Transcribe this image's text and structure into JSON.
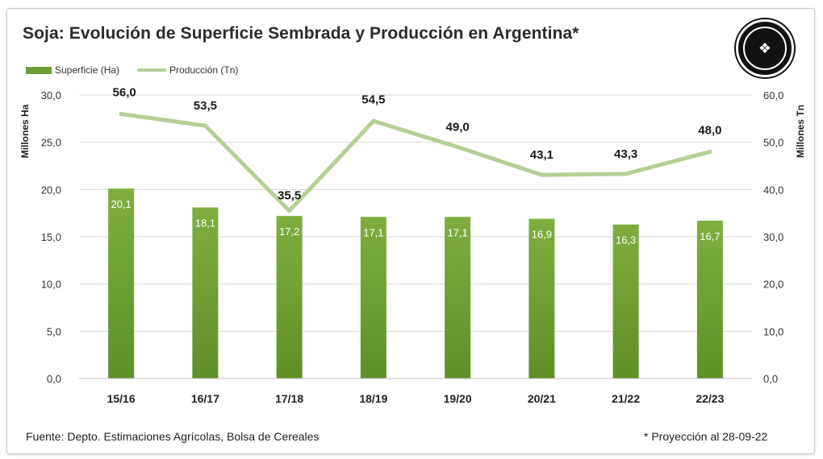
{
  "title": "Soja: Evolución de Superficie Sembrada y Producción en Argentina*",
  "footer": {
    "source": "Fuente: Depto. Estimaciones Agrícolas, Bolsa de Cereales",
    "note": "* Proyección al 28-09-22"
  },
  "logo": {
    "icon": "seal-logo-icon"
  },
  "colors": {
    "bar_top": "#7fae3e",
    "bar_bottom": "#5f8f27",
    "line": "#b5cf96",
    "projection_label": "#8cc54a",
    "gridline": "#d9d9d9"
  },
  "chart_data": {
    "type": "bar",
    "categories": [
      "15/16",
      "16/17",
      "17/18",
      "18/19",
      "19/20",
      "20/21",
      "21/22",
      "22/23"
    ],
    "series": [
      {
        "name": "Superficie (Ha)",
        "type": "bar",
        "axis": "left",
        "values": [
          20.1,
          18.1,
          17.2,
          17.1,
          17.1,
          16.9,
          16.3,
          16.7
        ],
        "labels": [
          "20,1",
          "18,1",
          "17,2",
          "17,1",
          "17,1",
          "16,9",
          "16,3",
          "16,7"
        ]
      },
      {
        "name": "Producción (Tn)",
        "type": "line",
        "axis": "right",
        "values": [
          56.0,
          53.5,
          35.5,
          54.5,
          49.0,
          43.1,
          43.3,
          48.0
        ],
        "labels": [
          "56,0",
          "53,5",
          "35,5",
          "54,5",
          "49,0",
          "43,1",
          "43,3",
          "48,0"
        ]
      }
    ],
    "y_left": {
      "label": "Millones Ha",
      "lim": [
        0,
        30
      ],
      "ticks": [
        "0,0",
        "5,0",
        "10,0",
        "15,0",
        "20,0",
        "25,0",
        "30,0"
      ]
    },
    "y_right": {
      "label": "Millones Tn",
      "lim": [
        0,
        60
      ],
      "ticks": [
        "0,0",
        "10,0",
        "20,0",
        "30,0",
        "40,0",
        "50,0",
        "60,0"
      ]
    },
    "grid": true,
    "legend": "top-left",
    "projected_index": 7
  }
}
